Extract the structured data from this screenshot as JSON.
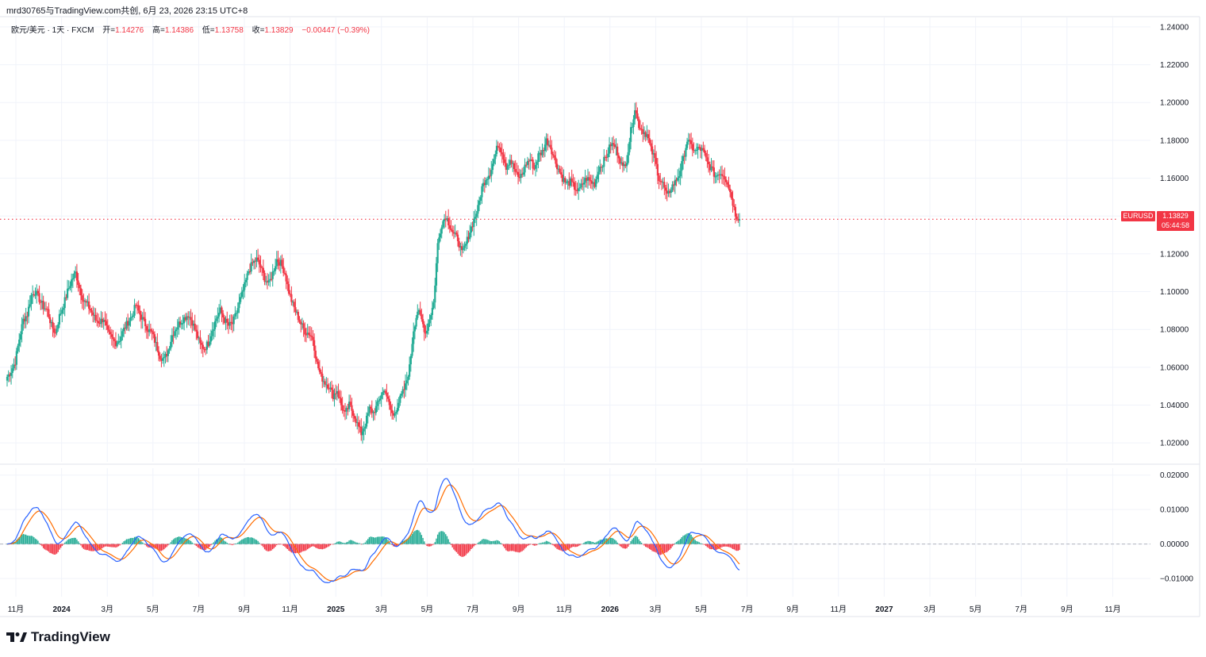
{
  "header": {
    "attribution": "mrd30765与TradingView.com共创, 6月 23, 2026 23:15 UTC+8",
    "symbol_line": "欧元/美元 · 1天 · FXCM",
    "open_label": "开=",
    "open_value": "1.14276",
    "high_label": "高=",
    "high_value": "1.14386",
    "low_label": "低=",
    "low_value": "1.13758",
    "close_label": "收=",
    "close_value": "1.13829",
    "change": "−0.00447 (−0.39%)"
  },
  "price_tags": {
    "symbol": "EURUSD",
    "last_price": "1.13829",
    "countdown": "05:44:58"
  },
  "brand": {
    "name": "TradingView",
    "logo_icon": "tradingview-logo-icon"
  },
  "colors": {
    "up": "#22ab94",
    "down": "#f23645",
    "macd_line": "#2962ff",
    "signal_line": "#ff6d00",
    "grid": "#f0f3fa"
  },
  "chart_data": [
    {
      "type": "candlestick",
      "title": "",
      "symbol": "EURUSD",
      "timeframe": "1天",
      "ylim": [
        1.01,
        1.245
      ],
      "yticks": [
        "1.24000",
        "1.22000",
        "1.20000",
        "1.18000",
        "1.16000",
        "1.14000",
        "1.12000",
        "1.10000",
        "1.08000",
        "1.06000",
        "1.04000",
        "1.02000"
      ],
      "last_price": 1.13829,
      "grid": true,
      "xticks": [
        "11月",
        "2024",
        "3月",
        "5月",
        "7月",
        "9月",
        "11月",
        "2025",
        "3月",
        "5月",
        "7月",
        "9月",
        "11月",
        "2026",
        "3月",
        "5月",
        "7月",
        "9月",
        "11月",
        "2027",
        "3月",
        "5月",
        "7月",
        "9月",
        "11月"
      ],
      "weekly_closes": [
        1.055,
        1.058,
        1.063,
        1.075,
        1.085,
        1.088,
        1.098,
        1.1,
        1.096,
        1.092,
        1.09,
        1.082,
        1.078,
        1.087,
        1.093,
        1.1,
        1.106,
        1.11,
        1.102,
        1.095,
        1.093,
        1.089,
        1.085,
        1.084,
        1.086,
        1.078,
        1.075,
        1.073,
        1.075,
        1.08,
        1.084,
        1.087,
        1.093,
        1.088,
        1.084,
        1.08,
        1.078,
        1.072,
        1.066,
        1.064,
        1.069,
        1.077,
        1.081,
        1.084,
        1.086,
        1.088,
        1.084,
        1.078,
        1.072,
        1.07,
        1.073,
        1.08,
        1.086,
        1.09,
        1.085,
        1.082,
        1.083,
        1.089,
        1.096,
        1.103,
        1.111,
        1.115,
        1.117,
        1.113,
        1.107,
        1.104,
        1.11,
        1.117,
        1.115,
        1.11,
        1.1,
        1.093,
        1.088,
        1.083,
        1.079,
        1.078,
        1.075,
        1.062,
        1.055,
        1.052,
        1.05,
        1.045,
        1.048,
        1.04,
        1.035,
        1.04,
        1.036,
        1.03,
        1.025,
        1.03,
        1.038,
        1.036,
        1.04,
        1.046,
        1.048,
        1.039,
        1.034,
        1.04,
        1.045,
        1.05,
        1.06,
        1.08,
        1.09,
        1.085,
        1.078,
        1.086,
        1.094,
        1.125,
        1.136,
        1.14,
        1.135,
        1.13,
        1.128,
        1.12,
        1.125,
        1.132,
        1.138,
        1.144,
        1.155,
        1.16,
        1.163,
        1.17,
        1.178,
        1.174,
        1.166,
        1.17,
        1.165,
        1.16,
        1.162,
        1.168,
        1.17,
        1.165,
        1.172,
        1.174,
        1.18,
        1.177,
        1.17,
        1.165,
        1.16,
        1.157,
        1.158,
        1.155,
        1.153,
        1.157,
        1.16,
        1.158,
        1.157,
        1.165,
        1.168,
        1.172,
        1.178,
        1.177,
        1.172,
        1.165,
        1.17,
        1.185,
        1.197,
        1.188,
        1.185,
        1.183,
        1.175,
        1.17,
        1.16,
        1.157,
        1.15,
        1.155,
        1.158,
        1.162,
        1.17,
        1.18,
        1.177,
        1.174,
        1.176,
        1.174,
        1.168,
        1.165,
        1.161,
        1.163,
        1.162,
        1.158,
        1.15,
        1.141,
        1.138
      ]
    },
    {
      "type": "line",
      "title": "",
      "indicator": "MACD",
      "ylim": [
        -0.0125,
        0.022
      ],
      "yticks": [
        "0.02000",
        "0.01000",
        "0.00000",
        "−0.01000"
      ],
      "series": [
        {
          "name": "",
          "role": "macd",
          "color": "#2962ff"
        },
        {
          "name": "",
          "role": "signal",
          "color": "#ff6d00"
        },
        {
          "name": "",
          "role": "histogram",
          "up_color": "#22ab94",
          "down_color": "#f23645"
        }
      ]
    }
  ]
}
